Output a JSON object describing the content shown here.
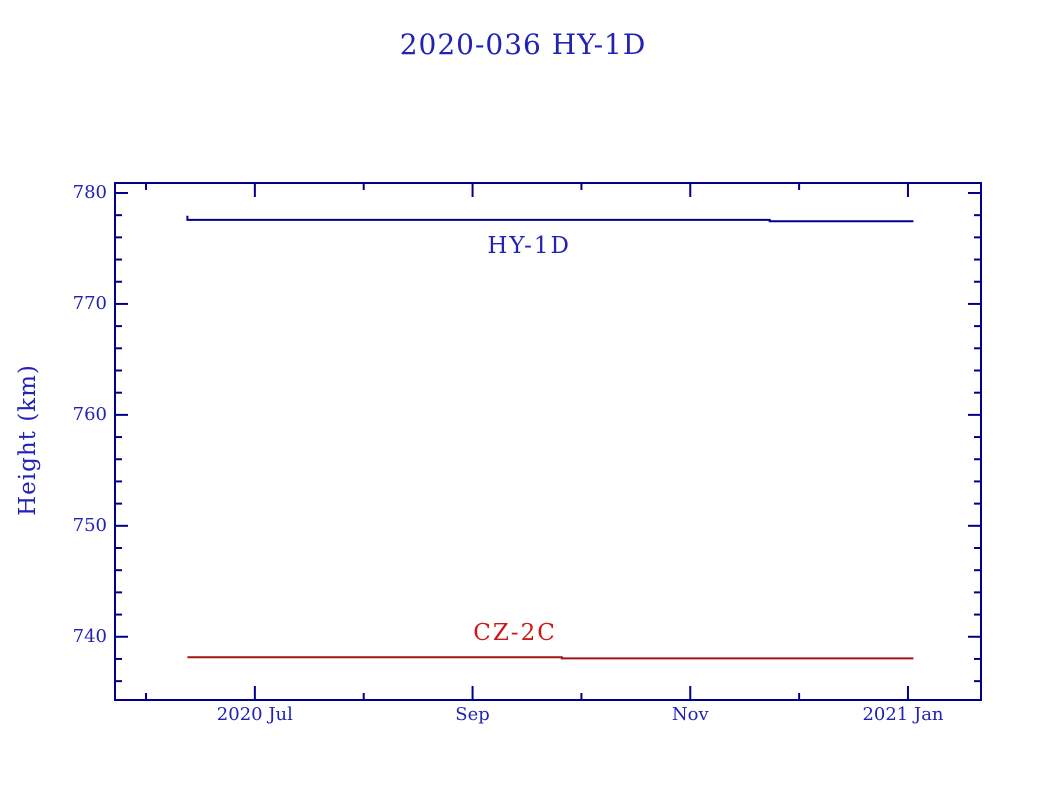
{
  "title": "2020-036 HY-1D",
  "y_axis_label": "Height (km)",
  "colors": {
    "title_text": "#2222b4",
    "axis_text": "#2222b4",
    "frame": "#00008b",
    "hy1d_line": "#00008b",
    "cz2c_line": "#a31515",
    "cz2c_label": "#cc1a1a",
    "background": "#ffffff"
  },
  "chart_data": {
    "type": "line",
    "title": "2020-036 HY-1D",
    "xlabel": "",
    "ylabel": "Height (km)",
    "x_unit": "months since 2020-06-01",
    "xlim": [
      -0.285,
      7.671
    ],
    "ylim": [
      734.3,
      780.9
    ],
    "grid": false,
    "legend_position": "inline labels next to lines",
    "x_ticks": [
      {
        "x": 0,
        "label": "",
        "major": false
      },
      {
        "x": 1,
        "label": "2020 Jul",
        "major": true
      },
      {
        "x": 2,
        "label": "",
        "major": false
      },
      {
        "x": 3,
        "label": "Sep",
        "major": true
      },
      {
        "x": 4,
        "label": "",
        "major": false
      },
      {
        "x": 5,
        "label": "Nov",
        "major": true
      },
      {
        "x": 6,
        "label": "",
        "major": false
      },
      {
        "x": 7,
        "label": "2021 Jan",
        "major": true
      }
    ],
    "y_ticks_major": [
      740,
      750,
      760,
      770,
      780
    ],
    "y_minor_step": 2,
    "series": [
      {
        "name": "HY-1D",
        "color": "#00008b",
        "label_color": "#2222b4",
        "label_anchor": [
          3.52,
          775.2
        ],
        "points": [
          [
            0.38,
            777.95
          ],
          [
            0.38,
            777.57
          ],
          [
            5.73,
            777.57
          ],
          [
            5.73,
            777.45
          ],
          [
            7.05,
            777.45
          ]
        ]
      },
      {
        "name": "CZ-2C",
        "color": "#a31515",
        "label_color": "#cc1a1a",
        "label_anchor": [
          3.39,
          740.3
        ],
        "points": [
          [
            0.38,
            738.15
          ],
          [
            3.82,
            738.15
          ],
          [
            3.82,
            738.05
          ],
          [
            7.05,
            738.05
          ]
        ]
      }
    ]
  }
}
